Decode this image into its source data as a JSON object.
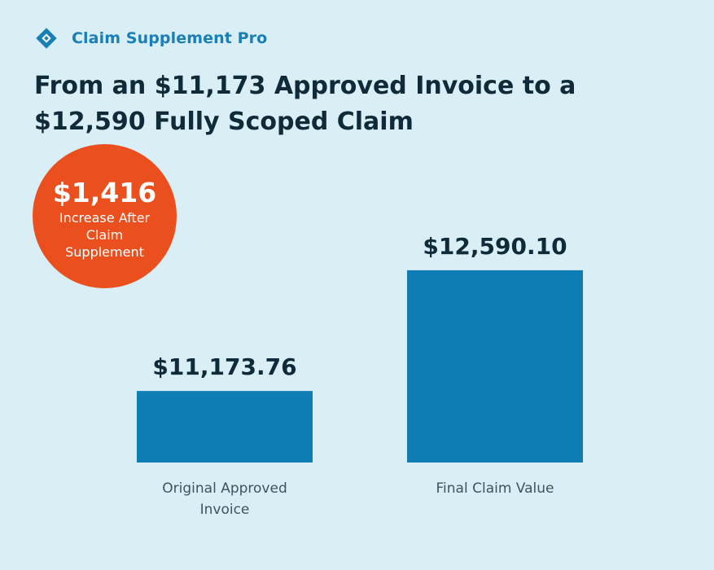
{
  "header": {
    "brand_name": "Claim Supplement Pro",
    "logo_icon": "diamond-logo-icon"
  },
  "title": "From an $11,173 Approved Invoice to a $12,590 Fully Scoped Claim",
  "badge": {
    "value": "$1,416",
    "label": "Increase After Claim Supplement"
  },
  "colors": {
    "background": "#d9eef5",
    "bar": "#0e7db3",
    "badge": "#ea4f1d",
    "brand": "#1b7fb7",
    "text": "#0f2a38"
  },
  "chart_data": {
    "type": "bar",
    "categories": [
      "Original Approved Invoice",
      "Final Claim Value"
    ],
    "values": [
      11173.76,
      12590.1
    ],
    "data_labels": [
      "$11,173.76",
      "$12,590.10"
    ],
    "ylim": [
      10000,
      13000
    ],
    "grid": false,
    "legend": "none"
  }
}
